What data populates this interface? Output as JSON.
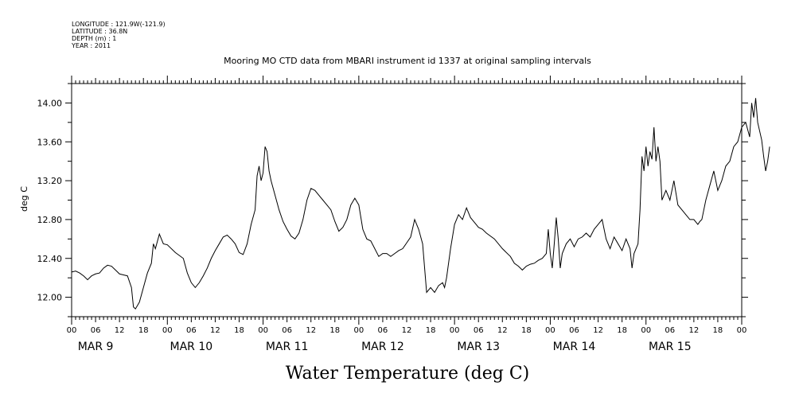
{
  "metadata": [
    "LONGITUDE : 121.9W(-121.9)",
    "LATITUDE : 36.8N",
    "DEPTH (m) : 1",
    "YEAR : 2011"
  ],
  "title": "Mooring MO CTD data from MBARI instrument id 1337 at original sampling intervals",
  "ylabel": "deg C",
  "xtitle": "Water Temperature (deg C)",
  "chart_data": {
    "type": "line",
    "title": "Mooring MO CTD data from MBARI instrument id 1337 at original sampling intervals",
    "xlabel": "",
    "ylabel": "deg C",
    "x_unit": "hours since MAR 9 00",
    "xlim": [
      0,
      168
    ],
    "ylim": [
      11.8,
      14.2
    ],
    "yticks": [
      12.0,
      12.4,
      12.8,
      13.2,
      13.6,
      14.0
    ],
    "ytick_labels": [
      "12.00",
      "12.40",
      "12.80",
      "13.20",
      "13.60",
      "14.00"
    ],
    "xtick_hours": [
      "00",
      "06",
      "12",
      "18"
    ],
    "days": [
      "MAR  9",
      "MAR 10",
      "MAR 11",
      "MAR 12",
      "MAR 13",
      "MAR 14",
      "MAR 15"
    ],
    "grid": false,
    "series": [
      {
        "values": [
          [
            0,
            12.26
          ],
          [
            1,
            12.27
          ],
          [
            2,
            12.25
          ],
          [
            3,
            12.22
          ],
          [
            4,
            12.18
          ],
          [
            5,
            12.22
          ],
          [
            6,
            12.24
          ],
          [
            7,
            12.25
          ],
          [
            8,
            12.3
          ],
          [
            9,
            12.33
          ],
          [
            10,
            12.32
          ],
          [
            11,
            12.28
          ],
          [
            12,
            12.24
          ],
          [
            13,
            12.23
          ],
          [
            14,
            12.22
          ],
          [
            15,
            12.1
          ],
          [
            15.5,
            11.9
          ],
          [
            16,
            11.88
          ],
          [
            17,
            11.95
          ],
          [
            18,
            12.1
          ],
          [
            19,
            12.25
          ],
          [
            20,
            12.35
          ],
          [
            20.5,
            12.55
          ],
          [
            21,
            12.5
          ],
          [
            22,
            12.65
          ],
          [
            23,
            12.55
          ],
          [
            24,
            12.54
          ],
          [
            26,
            12.46
          ],
          [
            28,
            12.4
          ],
          [
            29,
            12.25
          ],
          [
            30,
            12.15
          ],
          [
            31,
            12.1
          ],
          [
            32,
            12.15
          ],
          [
            33,
            12.22
          ],
          [
            34,
            12.3
          ],
          [
            35,
            12.4
          ],
          [
            36,
            12.48
          ],
          [
            37,
            12.55
          ],
          [
            38,
            12.62
          ],
          [
            39,
            12.64
          ],
          [
            40,
            12.6
          ],
          [
            41,
            12.55
          ],
          [
            42,
            12.46
          ],
          [
            43,
            12.44
          ],
          [
            44,
            12.55
          ],
          [
            45,
            12.75
          ],
          [
            46,
            12.9
          ],
          [
            46.5,
            13.25
          ],
          [
            47,
            13.35
          ],
          [
            47.5,
            13.2
          ],
          [
            48,
            13.28
          ],
          [
            48.5,
            13.55
          ],
          [
            49,
            13.5
          ],
          [
            49.5,
            13.3
          ],
          [
            50,
            13.2
          ],
          [
            51,
            13.05
          ],
          [
            52,
            12.9
          ],
          [
            53,
            12.78
          ],
          [
            54,
            12.7
          ],
          [
            55,
            12.63
          ],
          [
            56,
            12.6
          ],
          [
            57,
            12.66
          ],
          [
            58,
            12.8
          ],
          [
            59,
            13.0
          ],
          [
            60,
            13.12
          ],
          [
            61,
            13.1
          ],
          [
            62,
            13.05
          ],
          [
            63,
            13.0
          ],
          [
            64,
            12.95
          ],
          [
            65,
            12.9
          ],
          [
            66,
            12.78
          ],
          [
            67,
            12.68
          ],
          [
            68,
            12.72
          ],
          [
            69,
            12.8
          ],
          [
            70,
            12.95
          ],
          [
            71,
            13.02
          ],
          [
            72,
            12.95
          ],
          [
            73,
            12.7
          ],
          [
            74,
            12.6
          ],
          [
            75,
            12.58
          ],
          [
            76,
            12.5
          ],
          [
            77,
            12.42
          ],
          [
            78,
            12.45
          ],
          [
            79,
            12.45
          ],
          [
            80,
            12.42
          ],
          [
            81,
            12.45
          ],
          [
            82,
            12.48
          ],
          [
            83,
            12.5
          ],
          [
            84,
            12.56
          ],
          [
            85,
            12.62
          ],
          [
            86,
            12.8
          ],
          [
            87,
            12.7
          ],
          [
            88,
            12.55
          ],
          [
            88.5,
            12.3
          ],
          [
            89,
            12.05
          ],
          [
            90,
            12.1
          ],
          [
            91,
            12.05
          ],
          [
            92,
            12.12
          ],
          [
            93,
            12.15
          ],
          [
            93.5,
            12.1
          ],
          [
            94,
            12.2
          ],
          [
            95,
            12.5
          ],
          [
            96,
            12.75
          ],
          [
            97,
            12.85
          ],
          [
            98,
            12.8
          ],
          [
            99,
            12.92
          ],
          [
            100,
            12.82
          ],
          [
            101,
            12.77
          ],
          [
            102,
            12.72
          ],
          [
            103,
            12.7
          ],
          [
            104,
            12.66
          ],
          [
            106,
            12.6
          ],
          [
            108,
            12.5
          ],
          [
            110,
            12.42
          ],
          [
            111,
            12.35
          ],
          [
            112,
            12.32
          ],
          [
            113,
            12.28
          ],
          [
            114,
            12.32
          ],
          [
            115,
            12.34
          ],
          [
            116,
            12.35
          ],
          [
            117,
            12.38
          ],
          [
            118,
            12.4
          ],
          [
            119,
            12.45
          ],
          [
            119.5,
            12.7
          ],
          [
            120,
            12.45
          ],
          [
            120.5,
            12.3
          ],
          [
            121,
            12.55
          ],
          [
            121.5,
            12.82
          ],
          [
            122,
            12.6
          ],
          [
            122.5,
            12.3
          ],
          [
            123,
            12.45
          ],
          [
            124,
            12.55
          ],
          [
            125,
            12.6
          ],
          [
            126,
            12.52
          ],
          [
            127,
            12.6
          ],
          [
            128,
            12.62
          ],
          [
            129,
            12.66
          ],
          [
            130,
            12.62
          ],
          [
            131,
            12.7
          ],
          [
            132,
            12.75
          ],
          [
            133,
            12.8
          ],
          [
            134,
            12.6
          ],
          [
            135,
            12.5
          ],
          [
            136,
            12.62
          ],
          [
            137,
            12.55
          ],
          [
            138,
            12.48
          ],
          [
            139,
            12.6
          ],
          [
            140,
            12.5
          ],
          [
            140.5,
            12.3
          ],
          [
            141,
            12.45
          ],
          [
            142,
            12.55
          ],
          [
            142.5,
            12.9
          ],
          [
            143,
            13.45
          ],
          [
            143.5,
            13.3
          ],
          [
            144,
            13.55
          ],
          [
            144.5,
            13.35
          ],
          [
            145,
            13.5
          ],
          [
            145.5,
            13.42
          ],
          [
            146,
            13.75
          ],
          [
            146.5,
            13.4
          ],
          [
            147,
            13.55
          ],
          [
            147.5,
            13.4
          ],
          [
            148,
            13.0
          ],
          [
            149,
            13.1
          ],
          [
            150,
            13.0
          ],
          [
            151,
            13.2
          ],
          [
            152,
            12.95
          ],
          [
            153,
            12.9
          ],
          [
            154,
            12.85
          ],
          [
            155,
            12.8
          ],
          [
            156,
            12.8
          ],
          [
            157,
            12.75
          ],
          [
            157.5,
            12.78
          ],
          [
            158,
            12.8
          ],
          [
            159,
            13.0
          ],
          [
            160,
            13.15
          ],
          [
            161,
            13.3
          ],
          [
            162,
            13.1
          ],
          [
            163,
            13.2
          ],
          [
            164,
            13.35
          ],
          [
            165,
            13.4
          ],
          [
            166,
            13.55
          ],
          [
            167,
            13.6
          ],
          [
            168,
            13.75
          ],
          [
            169,
            13.8
          ],
          [
            170,
            13.65
          ],
          [
            170.5,
            14.0
          ],
          [
            171,
            13.85
          ],
          [
            171.5,
            14.05
          ],
          [
            172,
            13.8
          ],
          [
            173,
            13.62
          ],
          [
            173.5,
            13.45
          ],
          [
            174,
            13.3
          ],
          [
            174.5,
            13.4
          ],
          [
            175,
            13.55
          ]
        ]
      }
    ]
  }
}
